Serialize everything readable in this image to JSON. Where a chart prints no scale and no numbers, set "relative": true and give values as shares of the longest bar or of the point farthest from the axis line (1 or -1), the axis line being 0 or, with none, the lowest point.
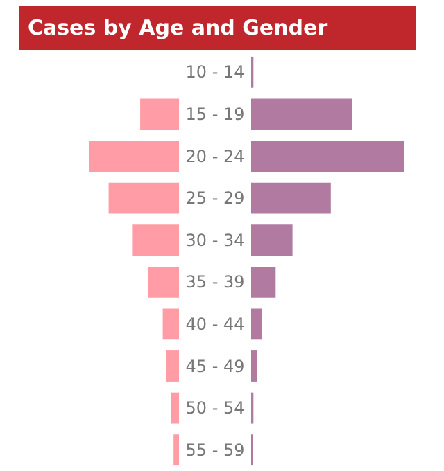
{
  "chart_data": [
    {
      "type": "bar",
      "title": "Cases by Age and Gender",
      "orientation": "horizontal",
      "relative": true,
      "tick_labels": "y",
      "categories": [
        "10 - 14",
        "15 - 19",
        "20 - 24",
        "25 - 29",
        "30 - 34",
        "35 - 39",
        "40 - 44",
        "45 - 49",
        "50 - 54",
        "55 - 59"
      ],
      "series": [
        {
          "color": "#ff9ca6",
          "values": [
            0,
            -0.43,
            -1,
            -0.78,
            -0.52,
            -0.34,
            -0.18,
            -0.14,
            -0.09,
            -0.06
          ]
        }
      ]
    },
    {
      "type": "bar",
      "orientation": "horizontal",
      "relative": true,
      "tick_labels": false,
      "categories": [
        null,
        null,
        null,
        null,
        null,
        null,
        null,
        null,
        null,
        null
      ],
      "series": [
        {
          "color": "#b07aa1",
          "values": [
            0.015,
            0.66,
            1,
            0.52,
            0.27,
            0.16,
            0.07,
            0.04,
            0.015,
            0.013
          ]
        }
      ]
    }
  ]
}
